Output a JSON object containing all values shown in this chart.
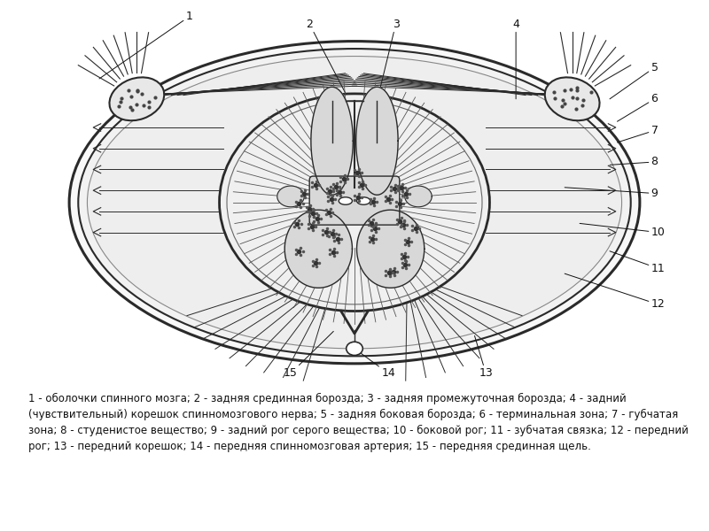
{
  "background_color": "#ffffff",
  "caption_line1": "1 - оболочки спинного мозга; 2 - задняя срединная борозда; 3 - задняя промежуточная борозда; 4 - задний",
  "caption_line2": "(чувствительный) корешок спинномозгового нерва; 5 - задняя боковая борозда; 6 - терминальная зона; 7 - губчатая",
  "caption_line3": "зона; 8 - студенистое вещество; 9 - задний рог серого вещества; 10 - боковой рог; 11 - зубчатая связка; 12 - передний",
  "caption_line4": "рог; 13 - передний корешок; 14 - передняя спинномозговая артерия; 15 - передняя срединная щель.",
  "caption_fontsize": 8.5,
  "fig_width": 8.0,
  "fig_height": 6.0
}
